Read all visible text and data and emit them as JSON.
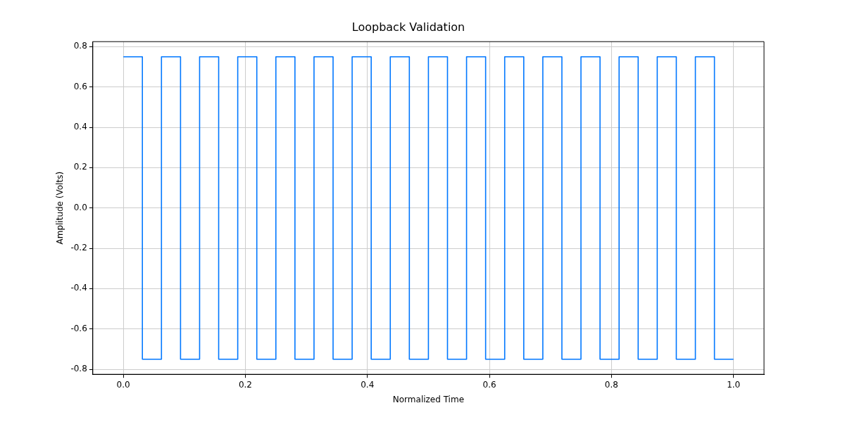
{
  "chart_data": {
    "type": "step",
    "title": "Loopback Validation",
    "xlabel": "Normalized Time",
    "ylabel": "Amplitude (Volts)",
    "x": [
      0,
      0.03125,
      0.0625,
      0.09375,
      0.125,
      0.15625,
      0.1875,
      0.21875,
      0.25,
      0.28125,
      0.3125,
      0.34375,
      0.375,
      0.40625,
      0.4375,
      0.46875,
      0.5,
      0.53125,
      0.5625,
      0.59375,
      0.625,
      0.65625,
      0.6875,
      0.71875,
      0.75,
      0.78125,
      0.8125,
      0.84375,
      0.875,
      0.90625,
      0.9375,
      0.96875,
      1.0
    ],
    "series": [
      {
        "color": "#0077ff",
        "values": [
          0.75,
          -0.75,
          0.75,
          -0.75,
          0.75,
          -0.75,
          0.75,
          -0.75,
          0.75,
          -0.75,
          0.75,
          -0.75,
          0.75,
          -0.75,
          0.75,
          -0.75,
          0.75,
          -0.75,
          0.75,
          -0.75,
          0.75,
          -0.75,
          0.75,
          -0.75,
          0.75,
          -0.75,
          0.75,
          -0.75,
          0.75,
          -0.75,
          0.75,
          -0.75,
          -0.75
        ]
      }
    ],
    "xlim": [
      -0.05,
      1.05
    ],
    "xticks": [
      {
        "value": 0,
        "label": "0.0"
      },
      0.2,
      0.4,
      0.6,
      0.8,
      {
        "value": 1,
        "label": "1.0"
      }
    ],
    "ylim": [
      -0.825,
      0.825
    ],
    "yticks": [
      -0.8,
      -0.6,
      -0.4,
      -0.2,
      {
        "value": 0,
        "label": "0.0"
      },
      0.2,
      0.4,
      0.6,
      0.8
    ],
    "grid": true,
    "legend": false,
    "line_style": "solid",
    "marker": "none"
  }
}
